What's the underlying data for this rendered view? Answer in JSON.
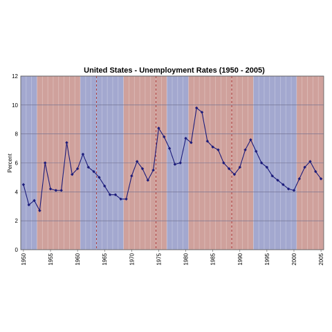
{
  "chart_data": {
    "type": "line",
    "title": "United States - Unemployment Rates (1950 - 2005)",
    "xlabel": "",
    "ylabel": "Percent",
    "xlim": [
      1949.5,
      2005.5
    ],
    "ylim": [
      0,
      12
    ],
    "y_ticks": [
      0,
      2,
      4,
      6,
      8,
      10,
      12
    ],
    "x_ticks": [
      1950,
      1955,
      1960,
      1965,
      1970,
      1975,
      1980,
      1985,
      1990,
      1995,
      2000,
      2005
    ],
    "grid": true,
    "colors": {
      "line": "#1a1a7a",
      "blue_band": "#a3a8cf",
      "red_band": "#cfa19c",
      "divider": "#b04040"
    },
    "background_bands": [
      {
        "start": 1949.5,
        "end": 1952.5,
        "shade": "blue"
      },
      {
        "start": 1952.5,
        "end": 1960.5,
        "shade": "red"
      },
      {
        "start": 1960.5,
        "end": 1968.5,
        "shade": "blue"
      },
      {
        "start": 1968.5,
        "end": 1976.5,
        "shade": "red"
      },
      {
        "start": 1976.5,
        "end": 1980.5,
        "shade": "blue"
      },
      {
        "start": 1980.5,
        "end": 1992.5,
        "shade": "red"
      },
      {
        "start": 1992.5,
        "end": 2000.5,
        "shade": "blue"
      },
      {
        "start": 2000.5,
        "end": 2005.5,
        "shade": "red"
      }
    ],
    "dashed_markers": [
      1963.5,
      1974.5,
      1988.5
    ],
    "series": [
      {
        "x": [
          1950,
          1951,
          1952,
          1953,
          1954,
          1955,
          1956,
          1957,
          1958,
          1959,
          1960,
          1961,
          1962,
          1963,
          1964,
          1965,
          1966,
          1967,
          1968,
          1969,
          1970,
          1971,
          1972,
          1973,
          1974,
          1975,
          1976,
          1977,
          1978,
          1979,
          1980,
          1981,
          1982,
          1983,
          1984,
          1985,
          1986,
          1987,
          1988,
          1989,
          1990,
          1991,
          1992,
          1993,
          1994,
          1995,
          1996,
          1997,
          1998,
          1999,
          2000,
          2001,
          2002,
          2003,
          2004,
          2005
        ],
        "values": [
          4.5,
          3.1,
          3.4,
          2.7,
          6.0,
          4.2,
          4.1,
          4.1,
          7.4,
          5.2,
          5.6,
          6.6,
          5.7,
          5.4,
          5.0,
          4.4,
          3.8,
          3.8,
          3.5,
          3.5,
          5.1,
          6.1,
          5.6,
          4.8,
          5.5,
          8.4,
          7.8,
          7.0,
          5.9,
          6.0,
          7.7,
          7.4,
          9.8,
          9.5,
          7.5,
          7.1,
          6.9,
          6.0,
          5.6,
          5.2,
          5.7,
          6.9,
          7.6,
          6.8,
          6.0,
          5.7,
          5.1,
          4.8,
          4.5,
          4.2,
          4.1,
          4.9,
          5.7,
          6.1,
          5.4,
          4.9
        ]
      }
    ]
  }
}
